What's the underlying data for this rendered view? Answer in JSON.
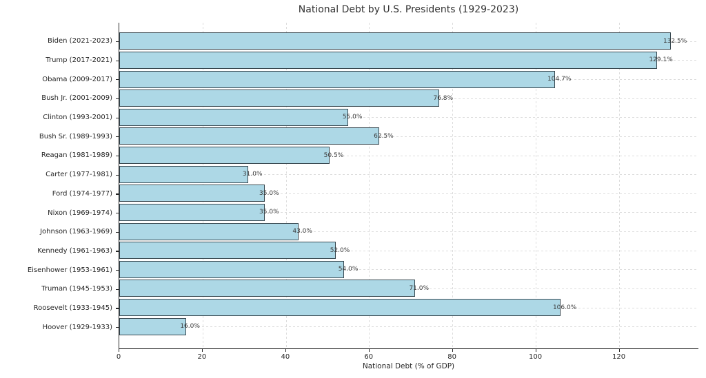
{
  "chart_data": {
    "type": "bar",
    "orientation": "horizontal",
    "title": "National Debt by U.S. Presidents (1929-2023)",
    "xlabel": "National Debt (% of GDP)",
    "categories": [
      "Biden (2021-2023)",
      "Trump (2017-2021)",
      "Obama (2009-2017)",
      "Bush Jr. (2001-2009)",
      "Clinton (1993-2001)",
      "Bush Sr. (1989-1993)",
      "Reagan (1981-1989)",
      "Carter (1977-1981)",
      "Ford (1974-1977)",
      "Nixon (1969-1974)",
      "Johnson (1963-1969)",
      "Kennedy (1961-1963)",
      "Eisenhower (1953-1961)",
      "Truman (1945-1953)",
      "Roosevelt (1933-1945)",
      "Hoover (1929-1933)"
    ],
    "values": [
      132.5,
      129.1,
      104.7,
      76.8,
      55.0,
      62.5,
      50.5,
      31.0,
      35.0,
      35.0,
      43.0,
      52.0,
      54.0,
      71.0,
      106.0,
      16.0
    ],
    "value_labels": [
      "132.5%",
      "129.1%",
      "104.7%",
      "76.8%",
      "55.0%",
      "62.5%",
      "50.5%",
      "31.0%",
      "35.0%",
      "35.0%",
      "43.0%",
      "52.0%",
      "54.0%",
      "71.0%",
      "106.0%",
      "16.0%"
    ],
    "xticks": [
      0,
      20,
      40,
      60,
      80,
      100,
      120
    ],
    "xlim": [
      0,
      139.1
    ],
    "grid": "dashed",
    "legend": "none",
    "bar_color": "#ADD8E6",
    "bar_edge_color": "#37474f",
    "grid_color": "#dcdcdc",
    "text_color": "#262626"
  }
}
